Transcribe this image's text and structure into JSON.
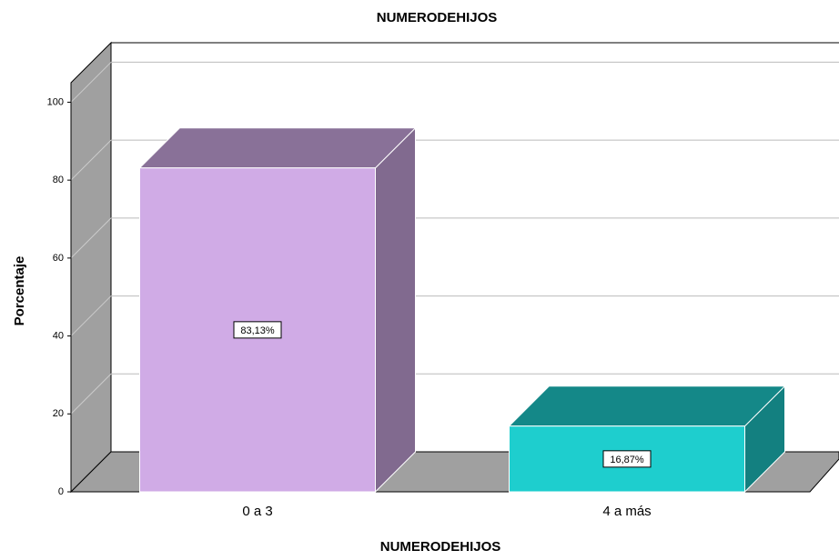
{
  "chart_data": {
    "type": "bar3d",
    "title": "NUMERODEHIJOS",
    "x_label": "NUMERODEHIJOS",
    "y_label": "Porcentaje",
    "categories": [
      "0 a 3",
      "4 a más"
    ],
    "values": [
      83.13,
      16.87
    ],
    "value_labels": [
      "83,13%",
      "16,87%"
    ],
    "colors": [
      "#d0abe6",
      "#1ecece"
    ],
    "ylim": [
      0,
      105
    ],
    "yticks": [
      0,
      20,
      40,
      60,
      80,
      100
    ],
    "grid": true
  }
}
